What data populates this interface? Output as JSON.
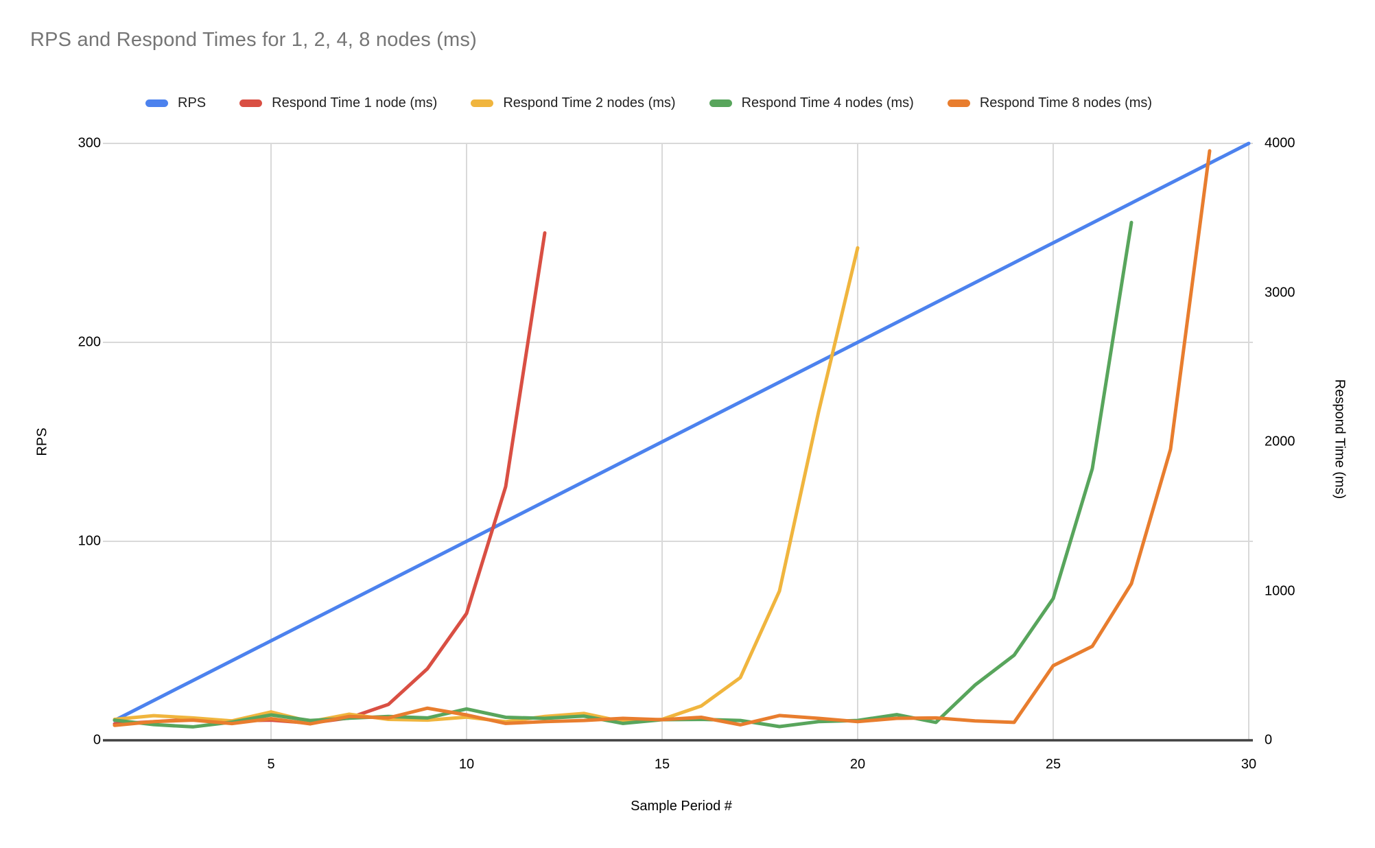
{
  "title": "RPS and Respond Times for 1, 2, 4, 8 nodes (ms)",
  "colors": {
    "title_text": "#757575",
    "legend_text": "#212121",
    "tick_text": "#000000",
    "grid": "#d9d9d9",
    "axis_line": "#424242",
    "background": "#ffffff"
  },
  "chart_data": {
    "type": "line",
    "title": "RPS and Respond Times for 1, 2, 4, 8 nodes (ms)",
    "xlabel": "Sample Period #",
    "ylabel_left": "RPS",
    "ylabel_right": "Respond Time (ms)",
    "x_range": [
      1,
      30
    ],
    "x_ticks": [
      5,
      10,
      15,
      20,
      25,
      30
    ],
    "y_left_range": [
      0,
      300
    ],
    "y_left_ticks": [
      0,
      100,
      200,
      300
    ],
    "y_right_range": [
      0,
      4000
    ],
    "y_right_ticks": [
      0,
      1000,
      2000,
      3000,
      4000
    ],
    "grid": "on",
    "legend_position": "top",
    "series": [
      {
        "name": "RPS",
        "axis": "left",
        "color": "#4C82EE",
        "x_start": 1,
        "values": [
          10,
          20,
          30,
          40,
          50,
          60,
          70,
          80,
          90,
          100,
          110,
          120,
          130,
          140,
          150,
          160,
          170,
          180,
          190,
          200,
          210,
          220,
          230,
          240,
          250,
          260,
          270,
          280,
          290,
          300
        ]
      },
      {
        "name": "Respond Time 1 node (ms)",
        "axis": "right",
        "color": "#D94F43",
        "x_start": 1,
        "values": [
          110,
          125,
          140,
          130,
          135,
          115,
          150,
          240,
          480,
          850,
          1700,
          3400
        ]
      },
      {
        "name": "Respond Time 2 nodes (ms)",
        "axis": "right",
        "color": "#F0B53E",
        "x_start": 1,
        "values": [
          140,
          165,
          150,
          130,
          190,
          125,
          175,
          140,
          135,
          155,
          125,
          160,
          180,
          125,
          140,
          230,
          420,
          1000,
          2200,
          3300
        ]
      },
      {
        "name": "Respond Time 4 nodes (ms)",
        "axis": "right",
        "color": "#58A55C",
        "x_start": 1,
        "values": [
          135,
          105,
          90,
          122,
          170,
          133,
          148,
          160,
          150,
          210,
          154,
          147,
          162,
          113,
          138,
          140,
          133,
          92,
          125,
          133,
          172,
          120,
          370,
          570,
          950,
          1820,
          3470
        ]
      },
      {
        "name": "Respond Time 8 nodes (ms)",
        "axis": "right",
        "color": "#E87D2E",
        "x_start": 1,
        "values": [
          100,
          125,
          135,
          112,
          145,
          110,
          160,
          150,
          215,
          170,
          113,
          125,
          133,
          147,
          138,
          154,
          104,
          166,
          147,
          125,
          147,
          150,
          130,
          120,
          500,
          630,
          1050,
          1950,
          3950
        ]
      }
    ]
  }
}
